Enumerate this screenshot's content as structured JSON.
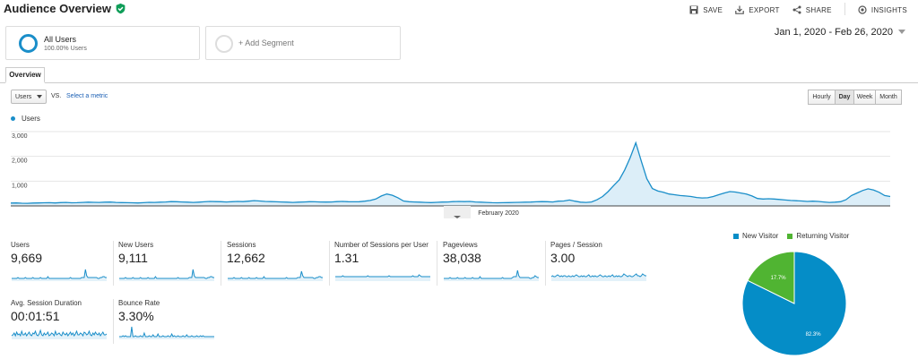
{
  "header": {
    "title": "Audience Overview",
    "actions": [
      "SAVE",
      "EXPORT",
      "SHARE",
      "INSIGHTS"
    ]
  },
  "segments": {
    "primary": {
      "name": "All Users",
      "pct": "100.00% Users"
    },
    "add_label": "+ Add Segment"
  },
  "date_range": "Jan 1, 2020 - Feb 26, 2020",
  "tabs": [
    "Overview"
  ],
  "controls": {
    "metric": "Users",
    "vs": "VS.",
    "select_metric": "Select a metric",
    "granularity": [
      "Hourly",
      "Day",
      "Week",
      "Month"
    ],
    "active_granularity": "Day"
  },
  "colors": {
    "accent": "#1a8ec9",
    "new_visitor": "#058dc7",
    "returning_visitor": "#50b432"
  },
  "chart_data": [
    {
      "type": "area",
      "series": [
        {
          "name": "Users",
          "values": [
            115,
            120,
            110,
            105,
            115,
            120,
            125,
            130,
            120,
            135,
            140,
            125,
            130,
            140,
            150,
            145,
            140,
            150,
            155,
            140,
            135,
            130,
            125,
            120,
            130,
            145,
            140,
            150,
            160,
            175,
            170,
            160,
            150,
            140,
            150,
            165,
            180,
            175,
            170,
            160,
            170,
            180,
            175,
            190,
            215,
            200,
            180,
            175,
            165,
            160,
            150,
            140,
            150,
            160,
            170,
            165,
            160,
            155,
            160,
            175,
            180,
            170,
            165,
            170,
            190,
            220,
            280,
            400,
            480,
            430,
            330,
            200,
            170,
            160,
            150,
            140,
            135,
            145,
            155,
            160,
            175,
            180,
            175,
            180,
            160,
            150,
            140,
            130,
            125,
            130,
            135,
            140,
            145,
            150,
            155,
            165,
            175,
            170,
            160,
            190,
            200,
            240,
            190,
            150,
            140,
            160,
            250,
            380,
            580,
            820,
            1050,
            1450,
            1950,
            2550,
            1800,
            1100,
            700,
            600,
            550,
            480,
            450,
            420,
            400,
            380,
            340,
            320,
            330,
            380,
            450,
            520,
            580,
            560,
            520,
            480,
            400,
            300,
            280,
            290,
            280,
            260,
            240,
            220,
            210,
            200,
            180,
            190,
            180,
            160,
            140,
            150,
            170,
            250,
            420,
            520,
            620,
            690,
            640,
            550,
            420,
            380
          ]
        }
      ],
      "x_label_center": "February 2020",
      "y_ticks": [
        "1,000",
        "2,000",
        "3,000"
      ],
      "ylim": [
        0,
        3000
      ],
      "legend": "top-left"
    },
    {
      "type": "pie",
      "categories": [
        "New Visitor",
        "Returning Visitor"
      ],
      "values": [
        82.3,
        17.7
      ],
      "labels": [
        "82.3%",
        "17.7%"
      ],
      "legend": "top"
    }
  ],
  "metrics": [
    {
      "label": "Users",
      "value": "9,669",
      "spark": [
        3,
        3,
        3,
        3,
        3,
        4,
        3,
        3,
        3,
        3,
        3,
        4,
        3,
        3,
        3,
        3,
        3,
        4,
        3,
        3,
        3,
        3,
        3,
        4,
        3,
        3,
        3,
        3,
        3,
        5,
        3,
        3,
        3,
        3,
        3,
        3,
        3,
        3,
        3,
        3,
        3,
        3,
        3,
        3,
        3,
        3,
        3,
        4,
        3,
        3,
        3,
        3,
        3,
        3,
        3,
        3,
        4,
        4,
        4,
        13,
        6,
        4,
        4,
        4,
        4,
        4,
        4,
        4,
        4,
        3,
        3,
        4,
        4,
        5,
        5,
        4,
        4
      ]
    },
    {
      "label": "New Users",
      "value": "9,111",
      "spark": [
        3,
        3,
        3,
        3,
        3,
        4,
        3,
        3,
        3,
        3,
        3,
        4,
        3,
        3,
        3,
        3,
        3,
        4,
        3,
        3,
        3,
        3,
        3,
        4,
        3,
        3,
        3,
        3,
        3,
        5,
        3,
        3,
        3,
        3,
        3,
        3,
        3,
        3,
        3,
        3,
        3,
        3,
        3,
        3,
        3,
        3,
        3,
        4,
        3,
        3,
        3,
        3,
        3,
        3,
        3,
        3,
        4,
        4,
        4,
        13,
        6,
        4,
        4,
        4,
        4,
        4,
        4,
        4,
        4,
        3,
        3,
        4,
        4,
        5,
        5,
        4,
        4
      ]
    },
    {
      "label": "Sessions",
      "value": "12,662",
      "spark": [
        3,
        3,
        3,
        3,
        3,
        4,
        3,
        3,
        3,
        3,
        3,
        4,
        3,
        3,
        3,
        3,
        3,
        4,
        3,
        3,
        3,
        3,
        3,
        4,
        3,
        3,
        3,
        3,
        3,
        5,
        3,
        3,
        3,
        3,
        3,
        3,
        3,
        3,
        3,
        3,
        3,
        3,
        3,
        3,
        3,
        3,
        3,
        4,
        3,
        3,
        3,
        3,
        3,
        3,
        3,
        3,
        4,
        4,
        4,
        11,
        6,
        4,
        4,
        4,
        4,
        4,
        4,
        4,
        4,
        3,
        3,
        4,
        4,
        5,
        5,
        4,
        4
      ]
    },
    {
      "label": "Number of Sessions per User",
      "value": "1.31",
      "spark": [
        5,
        5,
        5,
        5,
        5,
        5,
        6,
        5,
        5,
        5,
        5,
        5,
        5,
        5,
        5,
        5,
        5,
        5,
        5,
        5,
        5,
        5,
        5,
        5,
        5,
        5,
        6,
        5,
        5,
        5,
        5,
        5,
        5,
        5,
        5,
        5,
        5,
        5,
        5,
        5,
        5,
        5,
        5,
        6,
        5,
        5,
        5,
        5,
        5,
        5,
        5,
        5,
        5,
        5,
        5,
        5,
        5,
        5,
        5,
        5,
        5,
        5,
        6,
        5,
        5,
        5,
        5,
        7,
        6,
        5,
        5,
        5,
        5,
        5,
        5,
        5,
        5
      ]
    },
    {
      "label": "Pageviews",
      "value": "38,038",
      "spark": [
        3,
        3,
        3,
        3,
        3,
        4,
        3,
        3,
        3,
        3,
        3,
        4,
        3,
        3,
        3,
        3,
        3,
        4,
        3,
        3,
        3,
        3,
        3,
        4,
        3,
        3,
        3,
        3,
        3,
        5,
        3,
        3,
        3,
        3,
        3,
        3,
        3,
        3,
        3,
        3,
        3,
        3,
        3,
        3,
        3,
        3,
        3,
        4,
        3,
        3,
        3,
        3,
        3,
        3,
        3,
        4,
        5,
        5,
        5,
        12,
        6,
        4,
        4,
        4,
        4,
        4,
        4,
        4,
        4,
        3,
        3,
        4,
        4,
        6,
        5,
        4,
        4
      ]
    },
    {
      "label": "Pages / Session",
      "value": "3.00",
      "spark": [
        5,
        6,
        5,
        5,
        6,
        7,
        6,
        5,
        6,
        5,
        6,
        6,
        5,
        5,
        6,
        5,
        5,
        6,
        5,
        6,
        7,
        6,
        5,
        5,
        6,
        5,
        6,
        5,
        5,
        6,
        7,
        5,
        5,
        6,
        5,
        6,
        5,
        5,
        6,
        7,
        6,
        5,
        5,
        6,
        5,
        5,
        6,
        5,
        6,
        7,
        5,
        5,
        6,
        5,
        6,
        5,
        5,
        6,
        8,
        7,
        6,
        5,
        6,
        6,
        5,
        5,
        6,
        7,
        8,
        6,
        6,
        5,
        6,
        8,
        7,
        6,
        6
      ]
    },
    {
      "label": "Avg. Session Duration",
      "value": "00:01:51",
      "spark": [
        4,
        5,
        7,
        4,
        8,
        5,
        6,
        4,
        9,
        5,
        5,
        7,
        4,
        6,
        8,
        5,
        4,
        7,
        6,
        9,
        5,
        4,
        6,
        10,
        5,
        4,
        7,
        5,
        6,
        8,
        4,
        5,
        7,
        6,
        4,
        9,
        5,
        6,
        7,
        5,
        4,
        8,
        6,
        5,
        7,
        4,
        6,
        8,
        5,
        7,
        4,
        6,
        9,
        5,
        5,
        7,
        6,
        4,
        8,
        7,
        5,
        6,
        9,
        5,
        4,
        7,
        5,
        8,
        6,
        5,
        7,
        4,
        6,
        8,
        5,
        5,
        6
      ]
    },
    {
      "label": "Bounce Rate",
      "value": "3.30%",
      "spark": [
        3,
        3,
        3,
        4,
        3,
        4,
        3,
        3,
        3,
        3,
        14,
        3,
        3,
        4,
        3,
        3,
        3,
        4,
        3,
        3,
        7,
        3,
        3,
        3,
        4,
        3,
        3,
        5,
        3,
        3,
        3,
        6,
        3,
        3,
        3,
        4,
        3,
        3,
        3,
        4,
        3,
        3,
        6,
        3,
        4,
        3,
        3,
        4,
        3,
        3,
        3,
        4,
        3,
        3,
        5,
        3,
        3,
        3,
        4,
        3,
        3,
        3,
        4,
        3,
        3,
        4,
        3,
        4,
        3,
        3,
        3,
        3,
        3,
        3,
        3,
        3,
        3
      ]
    }
  ]
}
